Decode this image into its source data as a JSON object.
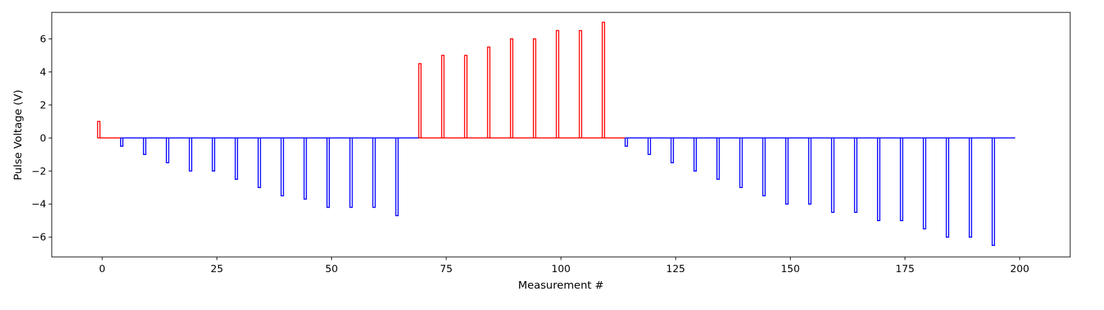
{
  "chart_data": {
    "type": "line",
    "title": "",
    "xlabel": "Measurement #",
    "ylabel": "Pulse Voltage (V)",
    "xlim": [
      -11,
      211
    ],
    "ylim": [
      -7.2,
      7.6
    ],
    "xticks": [
      0,
      25,
      50,
      75,
      100,
      125,
      150,
      175,
      200
    ],
    "yticks": [
      -6,
      -4,
      -2,
      0,
      2,
      4,
      6
    ],
    "grid": false,
    "legend": "none",
    "pulse_period": 5,
    "pulse_width": 0.5,
    "trace_end": 199,
    "series": [
      {
        "color": "#ff0000",
        "pulses": [
          {
            "x": -1,
            "v": 1.0
          }
        ],
        "baseline": [
          -1,
          4
        ]
      },
      {
        "color": "#0000ff",
        "pulses": [
          {
            "x": 4,
            "v": -0.5
          },
          {
            "x": 9,
            "v": -1.0
          },
          {
            "x": 14,
            "v": -1.5
          },
          {
            "x": 19,
            "v": -2.0
          },
          {
            "x": 24,
            "v": -2.0
          },
          {
            "x": 29,
            "v": -2.5
          },
          {
            "x": 34,
            "v": -3.0
          },
          {
            "x": 39,
            "v": -3.5
          },
          {
            "x": 44,
            "v": -3.7
          },
          {
            "x": 49,
            "v": -4.2
          },
          {
            "x": 54,
            "v": -4.2
          },
          {
            "x": 59,
            "v": -4.2
          },
          {
            "x": 64,
            "v": -4.7
          }
        ],
        "baseline": [
          4,
          69
        ]
      },
      {
        "color": "#ff0000",
        "pulses": [
          {
            "x": 69,
            "v": 4.5
          },
          {
            "x": 74,
            "v": 5.0
          },
          {
            "x": 79,
            "v": 5.0
          },
          {
            "x": 84,
            "v": 5.5
          },
          {
            "x": 89,
            "v": 6.0
          },
          {
            "x": 94,
            "v": 6.0
          },
          {
            "x": 99,
            "v": 6.5
          },
          {
            "x": 104,
            "v": 6.5
          },
          {
            "x": 109,
            "v": 7.0
          }
        ],
        "baseline": [
          69,
          114
        ]
      },
      {
        "color": "#0000ff",
        "pulses": [
          {
            "x": 114,
            "v": -0.5
          },
          {
            "x": 119,
            "v": -1.0
          },
          {
            "x": 124,
            "v": -1.5
          },
          {
            "x": 129,
            "v": -2.0
          },
          {
            "x": 134,
            "v": -2.5
          },
          {
            "x": 139,
            "v": -3.0
          },
          {
            "x": 144,
            "v": -3.5
          },
          {
            "x": 149,
            "v": -4.0
          },
          {
            "x": 154,
            "v": -4.0
          },
          {
            "x": 159,
            "v": -4.5
          },
          {
            "x": 164,
            "v": -4.5
          },
          {
            "x": 169,
            "v": -5.0
          },
          {
            "x": 174,
            "v": -5.0
          },
          {
            "x": 179,
            "v": -5.5
          },
          {
            "x": 184,
            "v": -6.0
          },
          {
            "x": 189,
            "v": -6.0
          },
          {
            "x": 194,
            "v": -6.5
          }
        ],
        "baseline": [
          114,
          199
        ]
      }
    ]
  }
}
